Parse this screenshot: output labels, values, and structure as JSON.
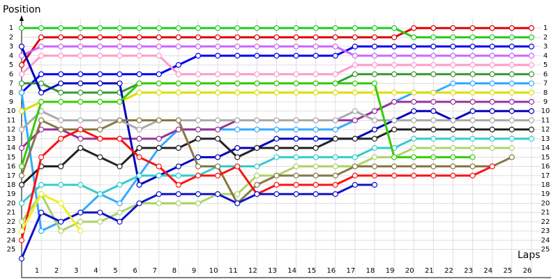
{
  "chart_data": {
    "type": "line",
    "y_label": "Position",
    "x_label": "Laps",
    "x": [
      0,
      1,
      2,
      3,
      4,
      5,
      6,
      7,
      8,
      9,
      10,
      11,
      12,
      13,
      14,
      15,
      16,
      17,
      18,
      19,
      20,
      21,
      22,
      23,
      24,
      25,
      26
    ],
    "xlim": [
      0,
      26.5
    ],
    "ylim": [
      27,
      0
    ],
    "y_inverted": true,
    "grid": true,
    "xticks": [
      1,
      2,
      3,
      4,
      5,
      6,
      7,
      8,
      9,
      10,
      11,
      12,
      13,
      14,
      15,
      16,
      17,
      18,
      19,
      20,
      21,
      22,
      23,
      24,
      25,
      26
    ],
    "yticks": [
      1,
      2,
      3,
      4,
      5,
      6,
      7,
      8,
      9,
      10,
      11,
      12,
      13,
      14,
      15,
      16,
      17,
      18,
      19,
      20,
      21,
      22,
      23,
      24,
      25
    ],
    "series": [
      {
        "color": "#e00000",
        "values": [
          5,
          2,
          2,
          2,
          2,
          2,
          2,
          2,
          2,
          2,
          2,
          2,
          2,
          2,
          2,
          2,
          2,
          2,
          2,
          2,
          1,
          1,
          1,
          1,
          1,
          1,
          1
        ]
      },
      {
        "color": "#22cc22",
        "values": [
          1,
          1,
          1,
          1,
          1,
          1,
          1,
          1,
          1,
          1,
          1,
          1,
          1,
          1,
          1,
          1,
          1,
          1,
          1,
          1,
          2,
          2,
          2,
          2,
          2,
          2,
          2
        ]
      },
      {
        "color": "#0000ee",
        "values": [
          8,
          6,
          6,
          6,
          6,
          6,
          6,
          6,
          5,
          4,
          4,
          4,
          4,
          4,
          4,
          4,
          4,
          3,
          3,
          3,
          3,
          3,
          3,
          3,
          3,
          3,
          3
        ]
      },
      {
        "color": "#cc66ff",
        "values": [
          4,
          3,
          3,
          3,
          3,
          3,
          3,
          3,
          3,
          3,
          3,
          3,
          3,
          3,
          3,
          3,
          3,
          4,
          4,
          4,
          4,
          4,
          4,
          4,
          4,
          4,
          4
        ]
      },
      {
        "color": "#ff99cc",
        "values": [
          6,
          4,
          4,
          4,
          4,
          4,
          4,
          4,
          6,
          6,
          6,
          6,
          6,
          6,
          6,
          6,
          6,
          5,
          5,
          5,
          5,
          5,
          5,
          5,
          5,
          5,
          5
        ]
      },
      {
        "color": "#339933",
        "values": [
          7,
          7,
          8,
          8,
          8,
          8,
          7,
          7,
          7,
          7,
          7,
          7,
          7,
          7,
          7,
          7,
          7,
          6,
          6,
          6,
          6,
          6,
          6,
          6,
          6,
          6,
          6
        ]
      },
      {
        "color": "#33aaff",
        "values": [
          8,
          23,
          22,
          21,
          19,
          20,
          17,
          14,
          12,
          12,
          12,
          12,
          12,
          12,
          12,
          12,
          12,
          11,
          10,
          9,
          8,
          8,
          7,
          7,
          7,
          7,
          7
        ]
      },
      {
        "color": "#dddd00",
        "values": [
          10,
          9,
          9,
          9,
          9,
          9,
          8,
          8,
          8,
          8,
          8,
          8,
          8,
          8,
          8,
          8,
          8,
          8,
          8,
          8,
          8,
          8,
          8,
          8,
          8,
          8,
          8
        ]
      },
      {
        "color": "#993399",
        "values": [
          14,
          12,
          12,
          13,
          13,
          13,
          13,
          13,
          12,
          12,
          12,
          11,
          11,
          11,
          11,
          11,
          11,
          11,
          10,
          9,
          9,
          9,
          9,
          9,
          9,
          9,
          9
        ]
      },
      {
        "color": "#0000bb",
        "values": [
          3,
          8,
          7,
          7,
          7,
          7,
          18,
          17,
          16,
          15,
          15,
          14,
          14,
          13,
          13,
          13,
          13,
          13,
          12,
          11,
          10,
          10,
          11,
          10,
          10,
          10,
          10
        ]
      },
      {
        "color": "#aaaaaa",
        "values": [
          12,
          10,
          11,
          11,
          11,
          11,
          12,
          11,
          11,
          11,
          11,
          11,
          11,
          11,
          11,
          11,
          11,
          10,
          11,
          11,
          11,
          11,
          11,
          11,
          11,
          11,
          11
        ]
      },
      {
        "color": "#222222",
        "values": [
          18,
          16,
          16,
          14,
          15,
          16,
          14,
          14,
          14,
          13,
          13,
          15,
          14,
          14,
          14,
          14,
          13,
          13,
          13,
          12,
          12,
          12,
          12,
          12,
          12,
          12,
          12
        ]
      },
      {
        "color": "#33cccc",
        "values": [
          20,
          18,
          18,
          18,
          19,
          18,
          17,
          17,
          17,
          17,
          16,
          16,
          16,
          15,
          15,
          15,
          15,
          15,
          14,
          14,
          13,
          13,
          13,
          13,
          13,
          13,
          13
        ]
      },
      {
        "color": "#aad466",
        "values": [
          22,
          19,
          23,
          22,
          22,
          21,
          20,
          20,
          20,
          20,
          19,
          19,
          17,
          17,
          16,
          16,
          16,
          16,
          15,
          15,
          14,
          14,
          14,
          14,
          14,
          14,
          null
        ]
      },
      {
        "color": "#887744",
        "values": [
          17,
          11,
          12,
          12,
          12,
          11,
          11,
          11,
          11,
          16,
          16,
          20,
          18,
          17,
          17,
          17,
          17,
          16,
          16,
          16,
          16,
          16,
          16,
          16,
          16,
          15,
          null
        ]
      },
      {
        "color": "#ff1111",
        "values": [
          24,
          15,
          13,
          12,
          13,
          13,
          15,
          16,
          18,
          17,
          17,
          16,
          19,
          18,
          18,
          18,
          18,
          17,
          17,
          17,
          17,
          17,
          17,
          17,
          16,
          null,
          null
        ]
      },
      {
        "color": "#33cc00",
        "values": [
          16,
          9,
          9,
          9,
          9,
          9,
          7,
          7,
          7,
          7,
          7,
          7,
          7,
          7,
          7,
          7,
          7,
          7,
          7,
          15,
          15,
          15,
          15,
          15,
          null,
          null,
          null
        ]
      },
      {
        "color": "#1111cc",
        "values": [
          26,
          21,
          22,
          21,
          21,
          22,
          20,
          19,
          19,
          19,
          19,
          20,
          19,
          19,
          19,
          19,
          19,
          18,
          18,
          null,
          null,
          null,
          null,
          null,
          null,
          null,
          null
        ]
      },
      {
        "color": "#eeee22",
        "values": [
          23,
          19,
          20,
          23,
          null,
          null,
          null,
          null,
          null,
          null,
          null,
          null,
          null,
          null,
          null,
          null,
          null,
          null,
          null,
          null,
          null,
          null,
          null,
          null,
          null,
          null,
          null
        ]
      }
    ]
  }
}
